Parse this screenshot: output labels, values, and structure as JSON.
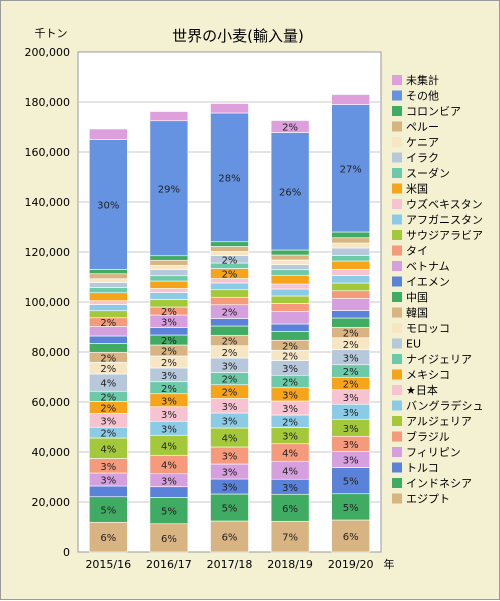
{
  "chart_data": {
    "type": "bar",
    "stacked": true,
    "title": "世界の小麦(輸入量)",
    "ylabel": "千トン",
    "xlabel": "年",
    "ylim": [
      0,
      200000
    ],
    "yticks": [
      0,
      20000,
      40000,
      60000,
      80000,
      100000,
      120000,
      140000,
      160000,
      180000,
      200000
    ],
    "ytick_labels": [
      "0",
      "20,000",
      "40,000",
      "60,000",
      "80,000",
      "100,000",
      "120,000",
      "140,000",
      "160,000",
      "180,000",
      "200,000"
    ],
    "categories": [
      "2015/16",
      "2016/17",
      "2017/18",
      "2018/19",
      "2019/20"
    ],
    "grid": "horizontal",
    "legend_position": "right",
    "series": [
      {
        "name": "エジプト",
        "color": "#d8b483",
        "values": [
          11900,
          11300,
          12400,
          12300,
          12800
        ],
        "labels": [
          "6%",
          "6%",
          "6%",
          "7%",
          "6%"
        ]
      },
      {
        "name": "インドネシア",
        "color": "#3fab63",
        "values": [
          10200,
          10500,
          10800,
          10800,
          10500
        ],
        "labels": [
          "5%",
          "5%",
          "5%",
          "6%",
          "5%"
        ]
      },
      {
        "name": "トルコ",
        "color": "#5a82d8",
        "values": [
          4300,
          4300,
          6000,
          6000,
          10500
        ],
        "labels": [
          "",
          "",
          "3%",
          "3%",
          "5%"
        ]
      },
      {
        "name": "フィリピン",
        "color": "#d6a0de",
        "values": [
          5200,
          5200,
          6000,
          7200,
          6500
        ],
        "labels": [
          "3%",
          "3%",
          "3%",
          "4%",
          "3%"
        ]
      },
      {
        "name": "ブラジル",
        "color": "#f69a7c",
        "values": [
          5800,
          7400,
          6800,
          7000,
          6000
        ],
        "labels": [
          "3%",
          "4%",
          "3%",
          "4%",
          "3%"
        ]
      },
      {
        "name": "アルジェリア",
        "color": "#a3c83a",
        "values": [
          8200,
          8000,
          7600,
          6500,
          6800
        ],
        "labels": [
          "4%",
          "4%",
          "4%",
          "3%",
          "3%"
        ]
      },
      {
        "name": "バングラデシュ",
        "color": "#8ccbe6",
        "values": [
          4300,
          5600,
          6000,
          5000,
          6000
        ],
        "labels": [
          "2%",
          "3%",
          "3%",
          "2%",
          "3%"
        ]
      },
      {
        "name": "★日本",
        "color": "#f7c3d1",
        "values": [
          5500,
          5800,
          5800,
          5600,
          5800
        ],
        "labels": [
          "3%",
          "3%",
          "3%",
          "3%",
          "3%"
        ]
      },
      {
        "name": "メキシコ",
        "color": "#f6a41a",
        "values": [
          4800,
          5200,
          5500,
          5300,
          5000
        ],
        "labels": [
          "2%",
          "3%",
          "2%",
          "3%",
          "2%"
        ]
      },
      {
        "name": "ナイジェリア",
        "color": "#6ccaa8",
        "values": [
          4100,
          4800,
          4900,
          5000,
          5000
        ],
        "labels": [
          "2%",
          "2%",
          "2%",
          "2%",
          "2%"
        ]
      },
      {
        "name": "EU",
        "color": "#b7c8da",
        "values": [
          6900,
          5500,
          5800,
          5900,
          6000
        ],
        "labels": [
          "4%",
          "3%",
          "3%",
          "3%",
          "3%"
        ]
      },
      {
        "name": "モロッコ",
        "color": "#f6e6c3",
        "values": [
          4700,
          4800,
          4900,
          4100,
          4800
        ],
        "labels": [
          "2%",
          "2%",
          "2%",
          "2%",
          "2%"
        ]
      },
      {
        "name": "韓国",
        "color": "#d8b483",
        "values": [
          4000,
          4400,
          4200,
          4000,
          4200
        ],
        "labels": [
          "2%",
          "2%",
          "2%",
          "2%",
          "2%"
        ]
      },
      {
        "name": "中国",
        "color": "#3fab63",
        "values": [
          3500,
          4000,
          3700,
          3500,
          3700
        ],
        "labels": [
          "",
          "2%",
          "",
          "",
          ""
        ]
      },
      {
        "name": "イエメン",
        "color": "#5a82d8",
        "values": [
          3000,
          3000,
          3000,
          3000,
          3000
        ],
        "labels": [
          "",
          "",
          "",
          "",
          ""
        ]
      },
      {
        "name": "ベトナム",
        "color": "#d6a0de",
        "values": [
          3800,
          5000,
          5500,
          5000,
          4800
        ],
        "labels": [
          "",
          "3%",
          "2%",
          "",
          ""
        ]
      },
      {
        "name": "タイ",
        "color": "#f69a7c",
        "values": [
          3500,
          3200,
          3000,
          3200,
          3100
        ],
        "labels": [
          "2%",
          "2%",
          "",
          "",
          ""
        ]
      },
      {
        "name": "サウジアラビア",
        "color": "#a3c83a",
        "values": [
          2800,
          3000,
          3000,
          3000,
          3100
        ],
        "labels": [
          "",
          "",
          "",
          "",
          ""
        ]
      },
      {
        "name": "アフガニスタン",
        "color": "#8ccbe6",
        "values": [
          2500,
          2800,
          2700,
          2800,
          3000
        ],
        "labels": [
          "",
          "",
          "",
          "",
          ""
        ]
      },
      {
        "name": "ウズベキスタン",
        "color": "#f7c3d1",
        "values": [
          1500,
          1600,
          1800,
          2000,
          2500
        ],
        "labels": [
          "",
          "",
          "",
          "",
          ""
        ]
      },
      {
        "name": "米国",
        "color": "#f6a41a",
        "values": [
          3200,
          3000,
          4000,
          3500,
          3300
        ],
        "labels": [
          "",
          "",
          "2%",
          "",
          ""
        ]
      },
      {
        "name": "スーダン",
        "color": "#6ccaa8",
        "values": [
          2100,
          2100,
          2200,
          2200,
          2200
        ],
        "labels": [
          "",
          "",
          "",
          "",
          ""
        ]
      },
      {
        "name": "イラク",
        "color": "#b7c8da",
        "values": [
          2000,
          2500,
          3000,
          2000,
          3000
        ],
        "labels": [
          "",
          "",
          "2%",
          "",
          ""
        ]
      },
      {
        "name": "ケニア",
        "color": "#f6e6c3",
        "values": [
          1500,
          1700,
          1600,
          1900,
          2000
        ],
        "labels": [
          "",
          "",
          "",
          "",
          ""
        ]
      },
      {
        "name": "ペルー",
        "color": "#d8b483",
        "values": [
          2000,
          2000,
          2000,
          2000,
          2100
        ],
        "labels": [
          "",
          "",
          "",
          "",
          ""
        ]
      },
      {
        "name": "コロンビア",
        "color": "#3fab63",
        "values": [
          1700,
          1800,
          1900,
          2000,
          2300
        ],
        "labels": [
          "",
          "",
          "",
          "",
          ""
        ]
      },
      {
        "name": "その他",
        "color": "#6593e1",
        "values": [
          52000,
          54000,
          51500,
          47000,
          51000
        ],
        "labels": [
          "30%",
          "29%",
          "28%",
          "26%",
          "27%"
        ]
      },
      {
        "name": "未集計",
        "color": "#dda0dd",
        "values": [
          4200,
          3700,
          3800,
          4800,
          4000
        ],
        "labels": [
          "",
          "",
          "",
          "2%",
          ""
        ]
      }
    ]
  }
}
